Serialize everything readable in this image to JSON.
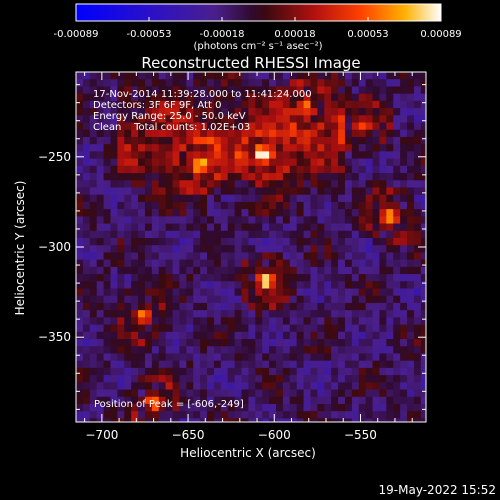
{
  "colorbar": {
    "tick_labels": [
      "-0.00089",
      "-0.00053",
      "-0.00018",
      "0.00018",
      "0.00053",
      "0.00089"
    ],
    "unit_label": "(photons cm⁻² s⁻¹ asec⁻²)",
    "min": -0.00089,
    "max": 0.00089
  },
  "chart_data": {
    "type": "heatmap",
    "title": "Reconstructed RHESSI Image",
    "xlabel": "Heliocentric X (arcsec)",
    "ylabel": "Heliocentric Y (arcsec)",
    "xlim": [
      -715,
      -512
    ],
    "ylim": [
      -397,
      -203
    ],
    "x_ticks": [
      -700,
      -650,
      -600,
      -550
    ],
    "y_ticks": [
      -350,
      -300,
      -250
    ],
    "annotations": [
      "17-Nov-2014 11:39:28.000 to 11:41:24.000",
      "Detectors: 3F 6F 9F, Att 0",
      "Energy Range: 25.0 - 50.0 keV",
      "Clean    Total counts: 1.02E+03"
    ],
    "peak_label": "Position of Peak = [-606,-249]",
    "peak": [
      -606,
      -249
    ],
    "bright_sources": [
      {
        "x": -606,
        "y": -249,
        "value": 0.00089
      },
      {
        "x": -605,
        "y": -319,
        "value": 0.00085
      },
      {
        "x": -676,
        "y": -338,
        "value": 0.00075
      },
      {
        "x": -670,
        "y": -386,
        "value": 0.0007
      },
      {
        "x": -533,
        "y": -283,
        "value": 0.0008
      },
      {
        "x": -644,
        "y": -254,
        "value": 0.00065
      },
      {
        "x": -548,
        "y": -233,
        "value": 0.00065
      },
      {
        "x": -582,
        "y": -223,
        "value": 0.0006
      }
    ]
  },
  "footer": {
    "date": "19-May-2022 15:52"
  }
}
